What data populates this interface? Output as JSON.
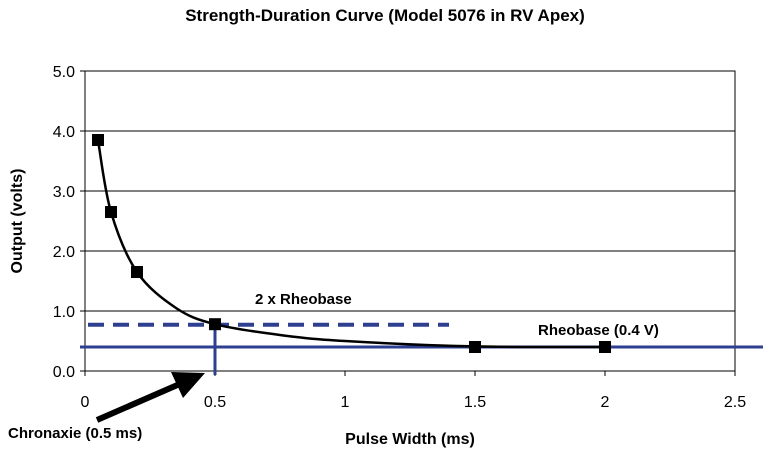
{
  "chart_data": {
    "type": "scatter",
    "title": "Strength-Duration Curve (Model 5076 in RV Apex)",
    "xlabel": "Pulse Width (ms)",
    "ylabel": "Output (volts)",
    "xlim": [
      0,
      2.5
    ],
    "ylim": [
      0,
      5.0
    ],
    "x_ticks": [
      "0",
      "0.5",
      "1",
      "1.5",
      "2",
      "2.5"
    ],
    "y_ticks": [
      "0.0",
      "1.0",
      "2.0",
      "3.0",
      "4.0",
      "5.0"
    ],
    "grid": "horizontal",
    "series": [
      {
        "marker": "square",
        "points": [
          {
            "x": 0.05,
            "y": 3.85
          },
          {
            "x": 0.1,
            "y": 2.65
          },
          {
            "x": 0.2,
            "y": 1.65
          },
          {
            "x": 0.5,
            "y": 0.78
          },
          {
            "x": 1.5,
            "y": 0.4
          },
          {
            "x": 2.0,
            "y": 0.4
          }
        ]
      }
    ],
    "fitted_curve": {
      "color": "#000000",
      "points": [
        {
          "x": 0.05,
          "y": 3.85
        },
        {
          "x": 0.1,
          "y": 2.65
        },
        {
          "x": 0.2,
          "y": 1.65
        },
        {
          "x": 0.35,
          "y": 1.05
        },
        {
          "x": 0.5,
          "y": 0.78
        },
        {
          "x": 0.75,
          "y": 0.6
        },
        {
          "x": 1.0,
          "y": 0.5
        },
        {
          "x": 1.5,
          "y": 0.41
        },
        {
          "x": 2.0,
          "y": 0.4
        }
      ]
    },
    "reference_lines": {
      "color": "#2e3f8f",
      "rheobase": {
        "label": "Rheobase (0.4 V)",
        "y": 0.4,
        "style": "solid"
      },
      "two_x_rheobase": {
        "label": "2 x Rheobase",
        "y": 0.77,
        "x_end": 1.4,
        "style": "dashed"
      },
      "chronaxie": {
        "label": "Chronaxie (0.5 ms)",
        "x": 0.5
      }
    }
  }
}
